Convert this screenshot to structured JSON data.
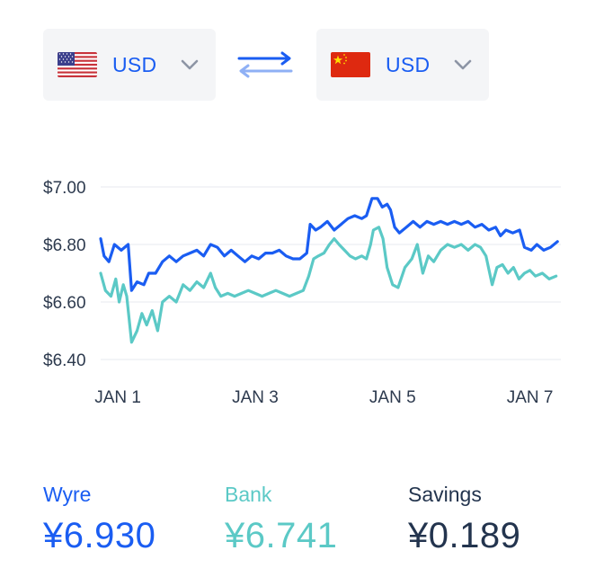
{
  "from": {
    "currency": "USD",
    "flag_icon": "us-flag-icon"
  },
  "to": {
    "currency": "USD",
    "flag_icon": "cn-flag-icon"
  },
  "colors": {
    "accent": "#1a5df2",
    "bank": "#5bc9c6",
    "savings": "#23344e",
    "grid": "#eceef2"
  },
  "chart_data": {
    "type": "line",
    "title": "",
    "xlabel": "",
    "ylabel": "",
    "ylim": [
      6.4,
      7.0
    ],
    "y_ticks": [
      "$7.00",
      "$6.80",
      "$6.60",
      "$6.40"
    ],
    "y_tick_values": [
      7.0,
      6.8,
      6.6,
      6.4
    ],
    "x_ticks": [
      "JAN 1",
      "JAN 3",
      "JAN 5",
      "JAN 7"
    ],
    "x_tick_values": [
      1,
      3,
      5,
      7
    ],
    "xlim": [
      0.75,
      7.45
    ],
    "grid": true,
    "legend": "none",
    "series": [
      {
        "color": "#1a5df2",
        "points": [
          [
            0.75,
            6.82
          ],
          [
            0.8,
            6.76
          ],
          [
            0.87,
            6.74
          ],
          [
            0.95,
            6.8
          ],
          [
            1.05,
            6.78
          ],
          [
            1.15,
            6.8
          ],
          [
            1.2,
            6.64
          ],
          [
            1.28,
            6.67
          ],
          [
            1.38,
            6.66
          ],
          [
            1.45,
            6.7
          ],
          [
            1.55,
            6.7
          ],
          [
            1.65,
            6.74
          ],
          [
            1.75,
            6.76
          ],
          [
            1.85,
            6.74
          ],
          [
            1.95,
            6.76
          ],
          [
            2.05,
            6.77
          ],
          [
            2.15,
            6.78
          ],
          [
            2.25,
            6.76
          ],
          [
            2.35,
            6.8
          ],
          [
            2.45,
            6.79
          ],
          [
            2.55,
            6.76
          ],
          [
            2.65,
            6.78
          ],
          [
            2.75,
            6.76
          ],
          [
            2.85,
            6.74
          ],
          [
            2.95,
            6.76
          ],
          [
            3.05,
            6.75
          ],
          [
            3.15,
            6.77
          ],
          [
            3.25,
            6.77
          ],
          [
            3.35,
            6.78
          ],
          [
            3.45,
            6.76
          ],
          [
            3.55,
            6.75
          ],
          [
            3.65,
            6.75
          ],
          [
            3.75,
            6.77
          ],
          [
            3.8,
            6.87
          ],
          [
            3.88,
            6.85
          ],
          [
            3.95,
            6.86
          ],
          [
            4.05,
            6.88
          ],
          [
            4.15,
            6.85
          ],
          [
            4.25,
            6.87
          ],
          [
            4.35,
            6.89
          ],
          [
            4.45,
            6.9
          ],
          [
            4.55,
            6.89
          ],
          [
            4.62,
            6.9
          ],
          [
            4.7,
            6.96
          ],
          [
            4.78,
            6.96
          ],
          [
            4.85,
            6.93
          ],
          [
            4.92,
            6.94
          ],
          [
            4.97,
            6.92
          ],
          [
            5.03,
            6.86
          ],
          [
            5.1,
            6.84
          ],
          [
            5.2,
            6.86
          ],
          [
            5.3,
            6.88
          ],
          [
            5.4,
            6.86
          ],
          [
            5.5,
            6.88
          ],
          [
            5.6,
            6.87
          ],
          [
            5.7,
            6.88
          ],
          [
            5.8,
            6.87
          ],
          [
            5.9,
            6.88
          ],
          [
            6.0,
            6.87
          ],
          [
            6.1,
            6.88
          ],
          [
            6.2,
            6.86
          ],
          [
            6.3,
            6.87
          ],
          [
            6.4,
            6.85
          ],
          [
            6.5,
            6.86
          ],
          [
            6.57,
            6.83
          ],
          [
            6.65,
            6.85
          ],
          [
            6.75,
            6.84
          ],
          [
            6.85,
            6.85
          ],
          [
            6.92,
            6.79
          ],
          [
            7.02,
            6.78
          ],
          [
            7.1,
            6.8
          ],
          [
            7.2,
            6.78
          ],
          [
            7.3,
            6.79
          ],
          [
            7.4,
            6.81
          ]
        ]
      },
      {
        "color": "#5bc9c6",
        "points": [
          [
            0.75,
            6.7
          ],
          [
            0.82,
            6.64
          ],
          [
            0.9,
            6.62
          ],
          [
            0.97,
            6.68
          ],
          [
            1.02,
            6.6
          ],
          [
            1.08,
            6.66
          ],
          [
            1.13,
            6.62
          ],
          [
            1.2,
            6.46
          ],
          [
            1.28,
            6.5
          ],
          [
            1.35,
            6.56
          ],
          [
            1.42,
            6.52
          ],
          [
            1.5,
            6.57
          ],
          [
            1.58,
            6.5
          ],
          [
            1.65,
            6.6
          ],
          [
            1.75,
            6.62
          ],
          [
            1.85,
            6.6
          ],
          [
            1.95,
            6.66
          ],
          [
            2.05,
            6.64
          ],
          [
            2.15,
            6.67
          ],
          [
            2.25,
            6.65
          ],
          [
            2.35,
            6.7
          ],
          [
            2.42,
            6.65
          ],
          [
            2.5,
            6.62
          ],
          [
            2.6,
            6.63
          ],
          [
            2.7,
            6.62
          ],
          [
            2.8,
            6.63
          ],
          [
            2.9,
            6.64
          ],
          [
            3.0,
            6.63
          ],
          [
            3.1,
            6.62
          ],
          [
            3.2,
            6.63
          ],
          [
            3.3,
            6.64
          ],
          [
            3.4,
            6.63
          ],
          [
            3.5,
            6.62
          ],
          [
            3.6,
            6.63
          ],
          [
            3.7,
            6.64
          ],
          [
            3.78,
            6.69
          ],
          [
            3.85,
            6.75
          ],
          [
            3.92,
            6.76
          ],
          [
            4.0,
            6.77
          ],
          [
            4.08,
            6.8
          ],
          [
            4.15,
            6.82
          ],
          [
            4.22,
            6.8
          ],
          [
            4.3,
            6.78
          ],
          [
            4.38,
            6.76
          ],
          [
            4.46,
            6.75
          ],
          [
            4.55,
            6.76
          ],
          [
            4.62,
            6.75
          ],
          [
            4.68,
            6.8
          ],
          [
            4.72,
            6.85
          ],
          [
            4.8,
            6.86
          ],
          [
            4.86,
            6.82
          ],
          [
            4.92,
            6.72
          ],
          [
            5.0,
            6.66
          ],
          [
            5.08,
            6.65
          ],
          [
            5.18,
            6.72
          ],
          [
            5.28,
            6.75
          ],
          [
            5.36,
            6.8
          ],
          [
            5.44,
            6.7
          ],
          [
            5.52,
            6.76
          ],
          [
            5.6,
            6.74
          ],
          [
            5.7,
            6.78
          ],
          [
            5.8,
            6.8
          ],
          [
            5.9,
            6.79
          ],
          [
            6.0,
            6.8
          ],
          [
            6.1,
            6.78
          ],
          [
            6.2,
            6.8
          ],
          [
            6.28,
            6.79
          ],
          [
            6.36,
            6.76
          ],
          [
            6.45,
            6.66
          ],
          [
            6.52,
            6.72
          ],
          [
            6.6,
            6.73
          ],
          [
            6.68,
            6.7
          ],
          [
            6.76,
            6.72
          ],
          [
            6.84,
            6.68
          ],
          [
            6.92,
            6.7
          ],
          [
            7.0,
            6.71
          ],
          [
            7.08,
            6.69
          ],
          [
            7.18,
            6.7
          ],
          [
            7.28,
            6.68
          ],
          [
            7.38,
            6.69
          ]
        ]
      }
    ]
  },
  "stats": {
    "wyre": {
      "label": "Wyre",
      "value": "¥6.930"
    },
    "bank": {
      "label": "Bank",
      "value": "¥6.741"
    },
    "savings": {
      "label": "Savings",
      "value": "¥0.189"
    }
  }
}
